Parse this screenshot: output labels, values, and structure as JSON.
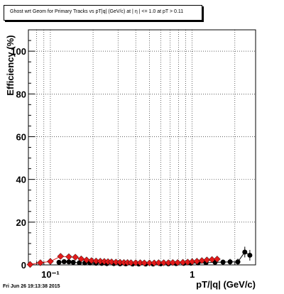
{
  "chart_data": {
    "type": "scatter",
    "title": "Ghost wrt Geom for Primary Tracks vs pT|q| (GeV/c) at |  η  | <= 1.0 at pT > 0.11",
    "xlabel": "pT/|q| (GeV/c)",
    "ylabel": "Efficiency (%)",
    "xscale": "log",
    "xlim": [
      0.07,
      2.8
    ],
    "ylim": [
      0,
      110
    ],
    "yticks": [
      0,
      20,
      40,
      60,
      80,
      100
    ],
    "xticks": [
      {
        "value": 0.1,
        "label": "10⁻¹"
      },
      {
        "value": 1,
        "label": "1"
      }
    ],
    "grid": true,
    "series": [
      {
        "color": "#000000",
        "marker": "circle",
        "points": [
          {
            "x": 0.115,
            "y": 1.2,
            "err": 0.5
          },
          {
            "x": 0.125,
            "y": 1.5,
            "err": 0.5
          },
          {
            "x": 0.135,
            "y": 1.4,
            "err": 0.5
          },
          {
            "x": 0.145,
            "y": 1.2,
            "err": 0.4
          },
          {
            "x": 0.16,
            "y": 1.0,
            "err": 0.4
          },
          {
            "x": 0.175,
            "y": 0.9,
            "err": 0.4
          },
          {
            "x": 0.19,
            "y": 0.9,
            "err": 0.3
          },
          {
            "x": 0.21,
            "y": 0.8,
            "err": 0.3
          },
          {
            "x": 0.23,
            "y": 0.7,
            "err": 0.3
          },
          {
            "x": 0.25,
            "y": 0.6,
            "err": 0.3
          },
          {
            "x": 0.28,
            "y": 0.6,
            "err": 0.3
          },
          {
            "x": 0.31,
            "y": 0.5,
            "err": 0.3
          },
          {
            "x": 0.34,
            "y": 0.5,
            "err": 0.3
          },
          {
            "x": 0.38,
            "y": 0.4,
            "err": 0.3
          },
          {
            "x": 0.42,
            "y": 0.4,
            "err": 0.3
          },
          {
            "x": 0.47,
            "y": 0.4,
            "err": 0.3
          },
          {
            "x": 0.53,
            "y": 0.4,
            "err": 0.3
          },
          {
            "x": 0.6,
            "y": 0.5,
            "err": 0.3
          },
          {
            "x": 0.68,
            "y": 0.5,
            "err": 0.4
          },
          {
            "x": 0.77,
            "y": 0.6,
            "err": 0.4
          },
          {
            "x": 0.87,
            "y": 0.7,
            "err": 0.5
          },
          {
            "x": 0.98,
            "y": 0.8,
            "err": 0.6
          },
          {
            "x": 1.1,
            "y": 0.9,
            "err": 0.7
          },
          {
            "x": 1.25,
            "y": 1.0,
            "err": 0.8
          },
          {
            "x": 1.45,
            "y": 1.2,
            "err": 1.0
          },
          {
            "x": 1.65,
            "y": 1.3,
            "err": 1.2
          },
          {
            "x": 1.85,
            "y": 1.4,
            "err": 1.4
          },
          {
            "x": 2.1,
            "y": 1.4,
            "err": 1.5
          },
          {
            "x": 2.35,
            "y": 6.0,
            "err": 2.5
          },
          {
            "x": 2.55,
            "y": 4.5,
            "err": 2.5
          }
        ]
      },
      {
        "color": "#e31a1a",
        "marker": "diamond",
        "points": [
          {
            "x": 0.072,
            "y": 0.2,
            "err": 0.2
          },
          {
            "x": 0.085,
            "y": 1.0,
            "err": 0.3
          },
          {
            "x": 0.1,
            "y": 1.6,
            "err": 0.4
          },
          {
            "x": 0.118,
            "y": 4.0,
            "err": 0.6
          },
          {
            "x": 0.135,
            "y": 3.8,
            "err": 0.6
          },
          {
            "x": 0.15,
            "y": 3.6,
            "err": 0.5
          },
          {
            "x": 0.165,
            "y": 2.8,
            "err": 0.5
          },
          {
            "x": 0.18,
            "y": 2.3,
            "err": 0.4
          },
          {
            "x": 0.195,
            "y": 2.0,
            "err": 0.4
          },
          {
            "x": 0.21,
            "y": 1.8,
            "err": 0.4
          },
          {
            "x": 0.225,
            "y": 1.7,
            "err": 0.4
          },
          {
            "x": 0.24,
            "y": 1.6,
            "err": 0.4
          },
          {
            "x": 0.255,
            "y": 1.5,
            "err": 0.4
          },
          {
            "x": 0.27,
            "y": 1.4,
            "err": 0.4
          },
          {
            "x": 0.29,
            "y": 1.3,
            "err": 0.3
          },
          {
            "x": 0.31,
            "y": 1.2,
            "err": 0.3
          },
          {
            "x": 0.33,
            "y": 1.1,
            "err": 0.3
          },
          {
            "x": 0.35,
            "y": 1.1,
            "err": 0.3
          },
          {
            "x": 0.37,
            "y": 1.0,
            "err": 0.3
          },
          {
            "x": 0.4,
            "y": 1.0,
            "err": 0.3
          },
          {
            "x": 0.43,
            "y": 1.0,
            "err": 0.3
          },
          {
            "x": 0.46,
            "y": 0.9,
            "err": 0.3
          },
          {
            "x": 0.5,
            "y": 0.9,
            "err": 0.3
          },
          {
            "x": 0.54,
            "y": 0.9,
            "err": 0.3
          },
          {
            "x": 0.58,
            "y": 1.0,
            "err": 0.3
          },
          {
            "x": 0.63,
            "y": 1.0,
            "err": 0.3
          },
          {
            "x": 0.68,
            "y": 1.0,
            "err": 0.3
          },
          {
            "x": 0.73,
            "y": 1.1,
            "err": 0.4
          },
          {
            "x": 0.79,
            "y": 1.1,
            "err": 0.4
          },
          {
            "x": 0.86,
            "y": 1.2,
            "err": 0.4
          },
          {
            "x": 0.93,
            "y": 1.3,
            "err": 0.5
          },
          {
            "x": 1.0,
            "y": 1.5,
            "err": 0.6
          },
          {
            "x": 1.08,
            "y": 1.7,
            "err": 0.7
          },
          {
            "x": 1.17,
            "y": 2.0,
            "err": 0.9
          },
          {
            "x": 1.27,
            "y": 2.3,
            "err": 1.0
          },
          {
            "x": 1.38,
            "y": 2.5,
            "err": 1.2
          },
          {
            "x": 1.5,
            "y": 2.7,
            "err": 1.4
          }
        ]
      }
    ]
  },
  "footer": {
    "timestamp": "Fri Jun 26 19:13:38 2015"
  }
}
